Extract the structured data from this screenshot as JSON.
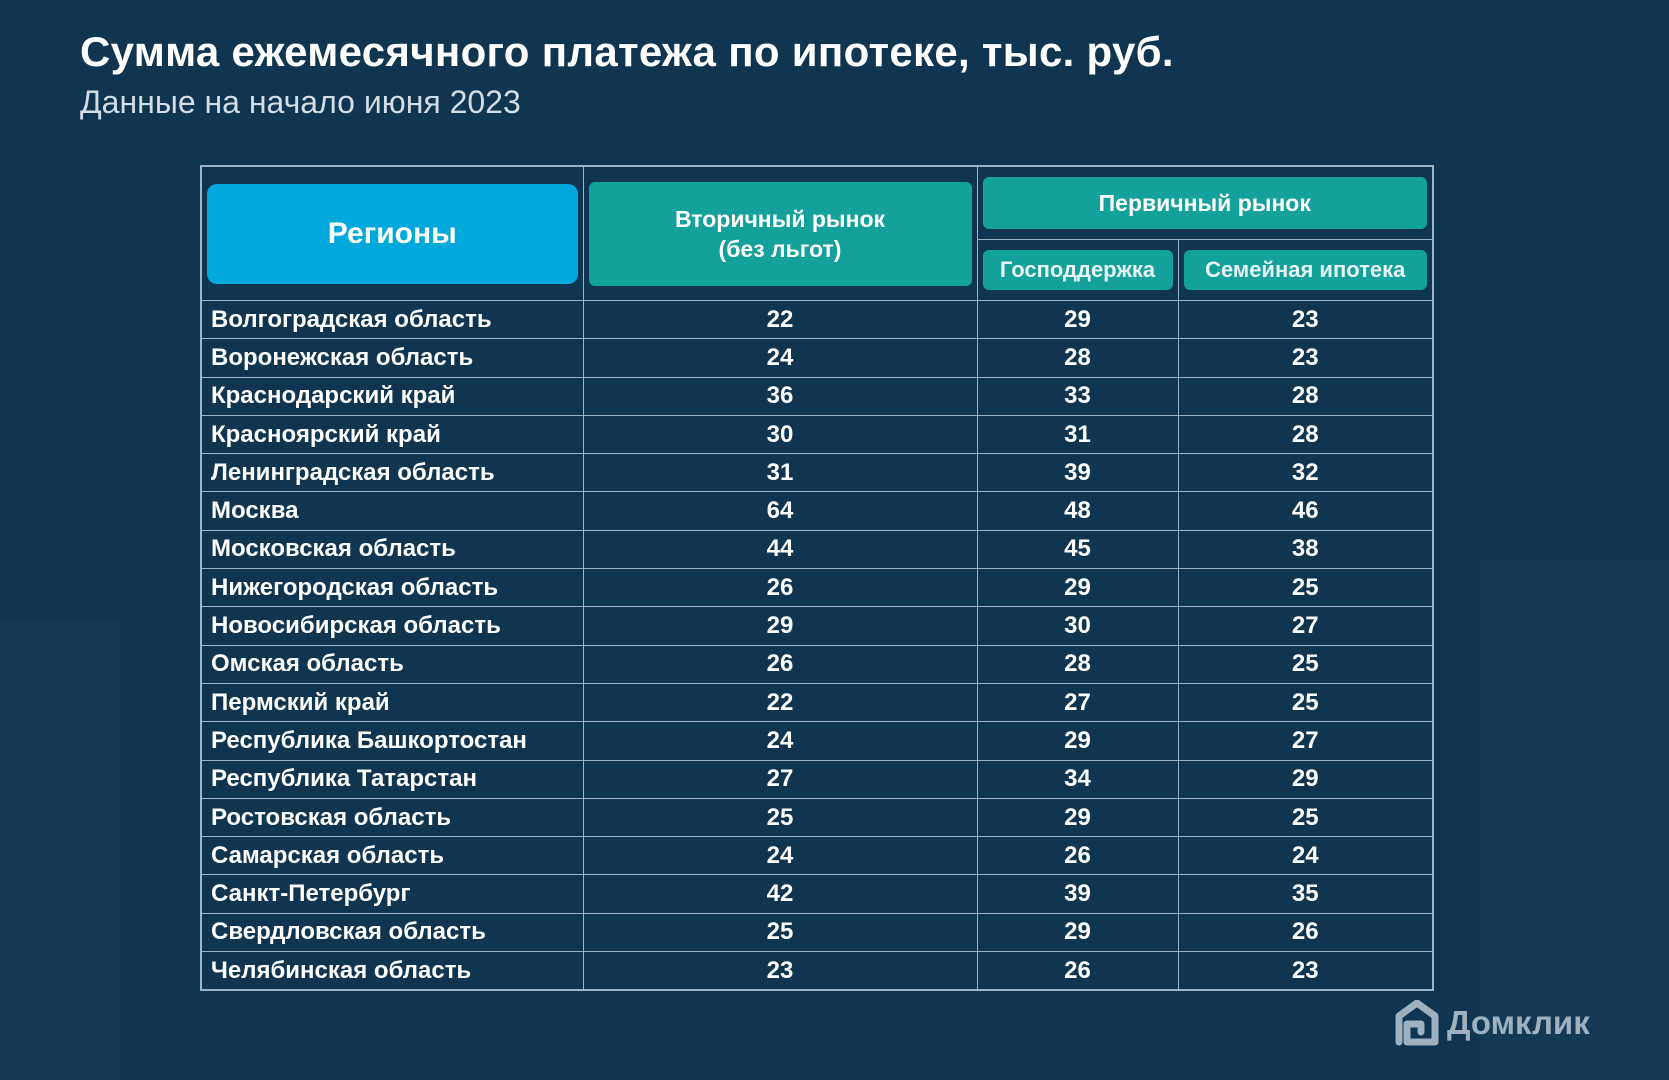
{
  "header": {
    "title": "Сумма ежемесячного платежа по ипотеке, тыс. руб.",
    "subtitle": "Данные на начало июня 2023"
  },
  "chart_data": {
    "type": "table",
    "title": "Сумма ежемесячного платежа по ипотеке, тыс. руб.",
    "subtitle": "Данные на начало июня 2023",
    "headers": {
      "region": "Регионы",
      "secondary_line1": "Вторичный рынок",
      "secondary_line2": "(без льгот)",
      "primary": "Первичный рынок",
      "gov_support": "Господдержка",
      "family": "Семейная ипотека"
    },
    "rows": [
      {
        "region": "Волгоградская область",
        "secondary": 22,
        "gov": 29,
        "family": 23
      },
      {
        "region": "Воронежская область",
        "secondary": 24,
        "gov": 28,
        "family": 23
      },
      {
        "region": "Краснодарский край",
        "secondary": 36,
        "gov": 33,
        "family": 28
      },
      {
        "region": "Красноярский край",
        "secondary": 30,
        "gov": 31,
        "family": 28
      },
      {
        "region": "Ленинградская область",
        "secondary": 31,
        "gov": 39,
        "family": 32
      },
      {
        "region": "Москва",
        "secondary": 64,
        "gov": 48,
        "family": 46
      },
      {
        "region": "Московская область",
        "secondary": 44,
        "gov": 45,
        "family": 38
      },
      {
        "region": "Нижегородская область",
        "secondary": 26,
        "gov": 29,
        "family": 25
      },
      {
        "region": "Новосибирская область",
        "secondary": 29,
        "gov": 30,
        "family": 27
      },
      {
        "region": "Омская область",
        "secondary": 26,
        "gov": 28,
        "family": 25
      },
      {
        "region": "Пермский край",
        "secondary": 22,
        "gov": 27,
        "family": 25
      },
      {
        "region": "Республика Башкортостан",
        "secondary": 24,
        "gov": 29,
        "family": 27
      },
      {
        "region": "Республика Татарстан",
        "secondary": 27,
        "gov": 34,
        "family": 29
      },
      {
        "region": "Ростовская область",
        "secondary": 25,
        "gov": 29,
        "family": 25
      },
      {
        "region": "Самарская область",
        "secondary": 24,
        "gov": 26,
        "family": 24
      },
      {
        "region": "Санкт-Петербург",
        "secondary": 42,
        "gov": 39,
        "family": 35
      },
      {
        "region": "Свердловская область",
        "secondary": 25,
        "gov": 29,
        "family": 26
      },
      {
        "region": "Челябинская область",
        "secondary": 23,
        "gov": 26,
        "family": 23
      }
    ]
  },
  "brand": {
    "name": "Домклик",
    "logo_icon": "house-icon"
  },
  "colors": {
    "background": "#0f3550",
    "region_header": "#00a8dc",
    "market_header": "#14a09b",
    "grid": "#9fb4c4",
    "logo": "#9fb0bf"
  }
}
